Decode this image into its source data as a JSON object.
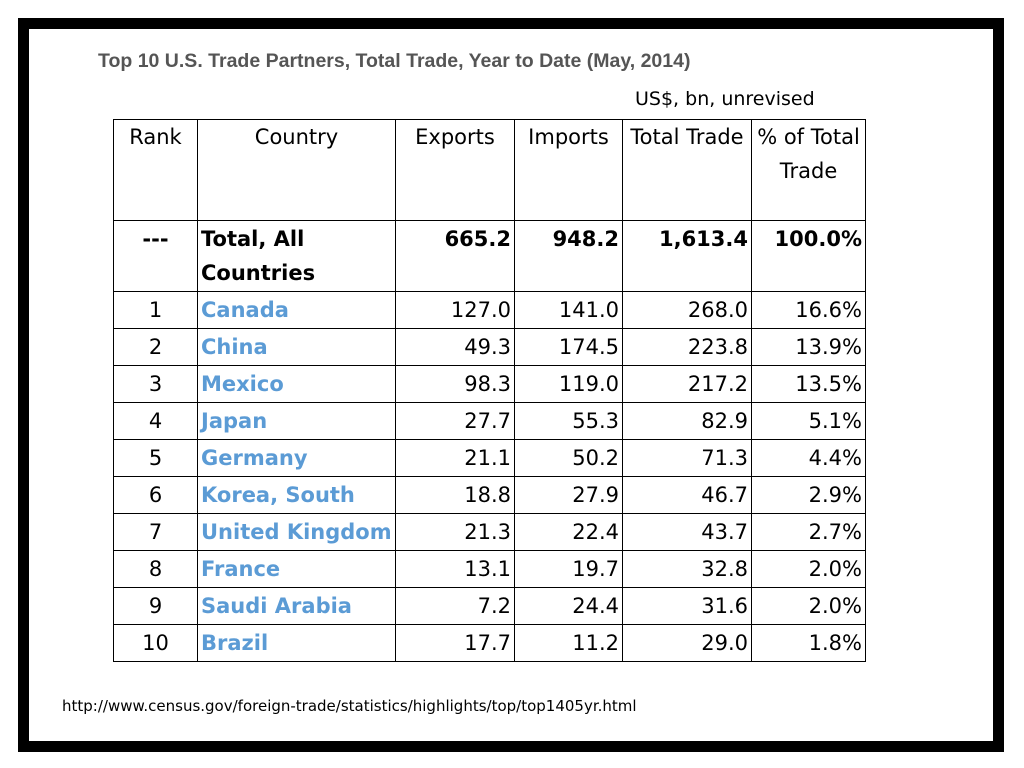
{
  "title": "Top 10 U.S. Trade Partners, Total Trade, Year to Date (May, 2014)",
  "units": "US$, bn, unrevised",
  "headers": {
    "rank": "Rank",
    "country": "Country",
    "exports": "Exports",
    "imports": "Imports",
    "total_trade": "Total Trade",
    "pct_total": "% of Total Trade"
  },
  "total_row": {
    "rank": "---",
    "country": "Total, All Countries",
    "exports": "665.2",
    "imports": "948.2",
    "total_trade": "1,613.4",
    "pct_total": "100.0%"
  },
  "rows": [
    {
      "rank": "1",
      "country": "Canada",
      "exports": "127.0",
      "imports": "141.0",
      "total_trade": "268.0",
      "pct_total": "16.6%"
    },
    {
      "rank": "2",
      "country": "China",
      "exports": "49.3",
      "imports": "174.5",
      "total_trade": "223.8",
      "pct_total": "13.9%"
    },
    {
      "rank": "3",
      "country": "Mexico",
      "exports": "98.3",
      "imports": "119.0",
      "total_trade": "217.2",
      "pct_total": "13.5%"
    },
    {
      "rank": "4",
      "country": "Japan",
      "exports": "27.7",
      "imports": "55.3",
      "total_trade": "82.9",
      "pct_total": "5.1%"
    },
    {
      "rank": "5",
      "country": "Germany",
      "exports": "21.1",
      "imports": "50.2",
      "total_trade": "71.3",
      "pct_total": "4.4%"
    },
    {
      "rank": "6",
      "country": "Korea, South",
      "exports": "18.8",
      "imports": "27.9",
      "total_trade": "46.7",
      "pct_total": "2.9%"
    },
    {
      "rank": "7",
      "country": "United Kingdom",
      "exports": "21.3",
      "imports": "22.4",
      "total_trade": "43.7",
      "pct_total": "2.7%"
    },
    {
      "rank": "8",
      "country": "France",
      "exports": "13.1",
      "imports": "19.7",
      "total_trade": "32.8",
      "pct_total": "2.0%"
    },
    {
      "rank": "9",
      "country": "Saudi Arabia",
      "exports": "7.2",
      "imports": "24.4",
      "total_trade": "31.6",
      "pct_total": "2.0%"
    },
    {
      "rank": "10",
      "country": "Brazil",
      "exports": "17.7",
      "imports": "11.2",
      "total_trade": "29.0",
      "pct_total": "1.8%"
    }
  ],
  "source": "http://www.census.gov/foreign-trade/statistics/highlights/top/top1405yr.html",
  "colors": {
    "frame": "#000000",
    "title": "#555555",
    "country_link": "#5B9BD5"
  }
}
